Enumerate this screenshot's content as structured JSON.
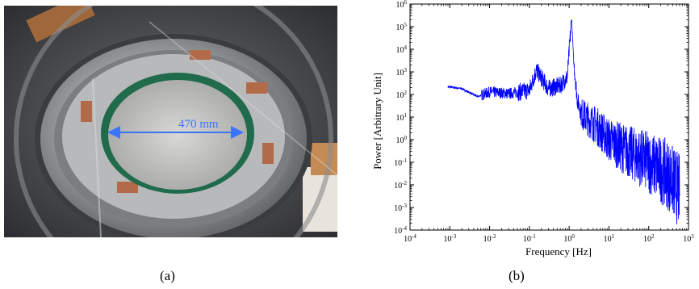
{
  "figure": {
    "panel_a": {
      "measurement_label": "470 mm",
      "caption": "(a)"
    },
    "panel_b": {
      "caption": "(b)"
    }
  },
  "chart_data": {
    "type": "line",
    "xlabel": "Frequency [Hz]",
    "ylabel": "Power [Arbitrary Unit]",
    "xscale": "log",
    "yscale": "log",
    "xlim": [
      0.0001,
      1000
    ],
    "ylim": [
      0.0001,
      1000000
    ],
    "x_ticks": [
      {
        "exp": "-4"
      },
      {
        "exp": "-3"
      },
      {
        "exp": "-2"
      },
      {
        "exp": "-1"
      },
      {
        "exp": "0"
      },
      {
        "exp": "1"
      },
      {
        "exp": "2"
      },
      {
        "exp": "3"
      }
    ],
    "y_ticks": [
      {
        "exp": "-4"
      },
      {
        "exp": "-3"
      },
      {
        "exp": "-2"
      },
      {
        "exp": "-1"
      },
      {
        "exp": "0"
      },
      {
        "exp": "1"
      },
      {
        "exp": "2"
      },
      {
        "exp": "3"
      },
      {
        "exp": "4"
      },
      {
        "exp": "5"
      },
      {
        "exp": "6"
      }
    ],
    "tick_base": "10",
    "grid": false,
    "line_color": "#0000ff",
    "series": [
      {
        "values_approx": {
          "x": [
            0.0009,
            0.002,
            0.005,
            0.01,
            0.03,
            0.1,
            0.15,
            0.3,
            0.6,
            0.9,
            1.15,
            1.3,
            1.6,
            2,
            3,
            5,
            10,
            30,
            100,
            300,
            600
          ],
          "y": [
            220,
            180,
            80,
            130,
            110,
            150,
            1200,
            180,
            250,
            600,
            250000,
            3000,
            60,
            15,
            8,
            4,
            1,
            0.3,
            0.1,
            0.03,
            0.005
          ]
        }
      }
    ]
  }
}
